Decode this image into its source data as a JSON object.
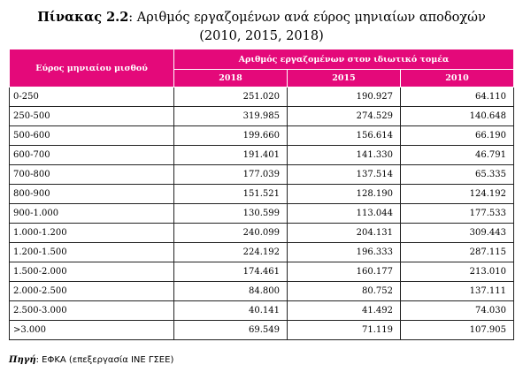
{
  "caption": {
    "label": "Πίνακας 2.2",
    "separator": ": ",
    "text": "Αριθμός εργαζομένων ανά εύρος μηνιαίων αποδοχών",
    "years": "(2010, 2015, 2018)"
  },
  "table": {
    "row_header": "Εύρος μηνιαίου μισθού",
    "group_header": "Αριθμός εργαζομένων στον ιδιωτικό τομέα",
    "columns": [
      "2018",
      "2015",
      "2010"
    ],
    "rows": [
      {
        "range": "0-250",
        "values": [
          "251.020",
          "190.927",
          "64.110"
        ]
      },
      {
        "range": "250-500",
        "values": [
          "319.985",
          "274.529",
          "140.648"
        ]
      },
      {
        "range": "500-600",
        "values": [
          "199.660",
          "156.614",
          "66.190"
        ]
      },
      {
        "range": "600-700",
        "values": [
          "191.401",
          "141.330",
          "46.791"
        ]
      },
      {
        "range": "700-800",
        "values": [
          "177.039",
          "137.514",
          "65.335"
        ]
      },
      {
        "range": "800-900",
        "values": [
          "151.521",
          "128.190",
          "124.192"
        ]
      },
      {
        "range": "900-1.000",
        "values": [
          "130.599",
          "113.044",
          "177.533"
        ]
      },
      {
        "range": "1.000-1.200",
        "values": [
          "240.099",
          "204.131",
          "309.443"
        ]
      },
      {
        "range": "1.200-1.500",
        "values": [
          "224.192",
          "196.333",
          "287.115"
        ]
      },
      {
        "range": "1.500-2.000",
        "values": [
          "174.461",
          "160.177",
          "213.010"
        ]
      },
      {
        "range": "2.000-2.500",
        "values": [
          "84.800",
          "80.752",
          "137.111"
        ]
      },
      {
        "range": "2.500-3.000",
        "values": [
          "40.141",
          "41.492",
          "74.030"
        ]
      },
      {
        "range": ">3.000",
        "values": [
          "69.549",
          "71.119",
          "107.905"
        ]
      }
    ]
  },
  "source": {
    "label": "Πηγή",
    "separator": ": ",
    "text": "ΕΦΚΑ (επεξεργασία ΙΝΕ ΓΣΕΕ)"
  },
  "colors": {
    "header_background": "#e4097a",
    "header_text": "#ffffff",
    "grid_lines": "#222222"
  }
}
